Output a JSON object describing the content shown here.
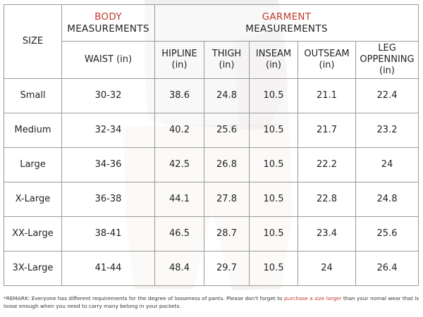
{
  "header": {
    "size_label": "SIZE",
    "body_title": "BODY",
    "body_subtitle": "MEASUREMENTS",
    "garment_title": "GARMENT",
    "garment_subtitle": "MEASUREMENTS",
    "columns": [
      {
        "line1": "WAIST (in)",
        "line2": "",
        "line3": ""
      },
      {
        "line1": "HIPLINE",
        "line2": "(in)",
        "line3": ""
      },
      {
        "line1": "THIGH",
        "line2": "(in)",
        "line3": ""
      },
      {
        "line1": "INSEAM",
        "line2": "(in)",
        "line3": ""
      },
      {
        "line1": "OUTSEAM",
        "line2": "(in)",
        "line3": ""
      },
      {
        "line1": "LEG",
        "line2": "OPPENNING",
        "line3": "(in)"
      }
    ]
  },
  "rows": [
    {
      "size": "Small",
      "waist": "30-32",
      "hipline": "38.6",
      "thigh": "24.8",
      "inseam": "10.5",
      "outseam": "21.1",
      "leg_opening": "22.4"
    },
    {
      "size": "Medium",
      "waist": "32-34",
      "hipline": "40.2",
      "thigh": "25.6",
      "inseam": "10.5",
      "outseam": "21.7",
      "leg_opening": "23.2"
    },
    {
      "size": "Large",
      "waist": "34-36",
      "hipline": "42.5",
      "thigh": "26.8",
      "inseam": "10.5",
      "outseam": "22.2",
      "leg_opening": "24"
    },
    {
      "size": "X-Large",
      "waist": "36-38",
      "hipline": "44.1",
      "thigh": "27.8",
      "inseam": "10.5",
      "outseam": "22.8",
      "leg_opening": "24.8"
    },
    {
      "size": "XX-Large",
      "waist": "38-41",
      "hipline": "46.5",
      "thigh": "28.7",
      "inseam": "10.5",
      "outseam": "23.4",
      "leg_opening": "25.6"
    },
    {
      "size": "3X-Large",
      "waist": "41-44",
      "hipline": "48.4",
      "thigh": "29.7",
      "inseam": "10.5",
      "outseam": "24",
      "leg_opening": "26.4"
    }
  ],
  "remark": {
    "part1": "*REMARK: Everyone has different requirements for the degree of looseness of pants. Please don't forget to ",
    "highlight": "purchase a size larger",
    "part2": " than your nomal wear that is loose enough when you need to carry many belong in your pockets."
  },
  "colors": {
    "accent_red": "#c0392b",
    "border": "#9a9a9a"
  }
}
